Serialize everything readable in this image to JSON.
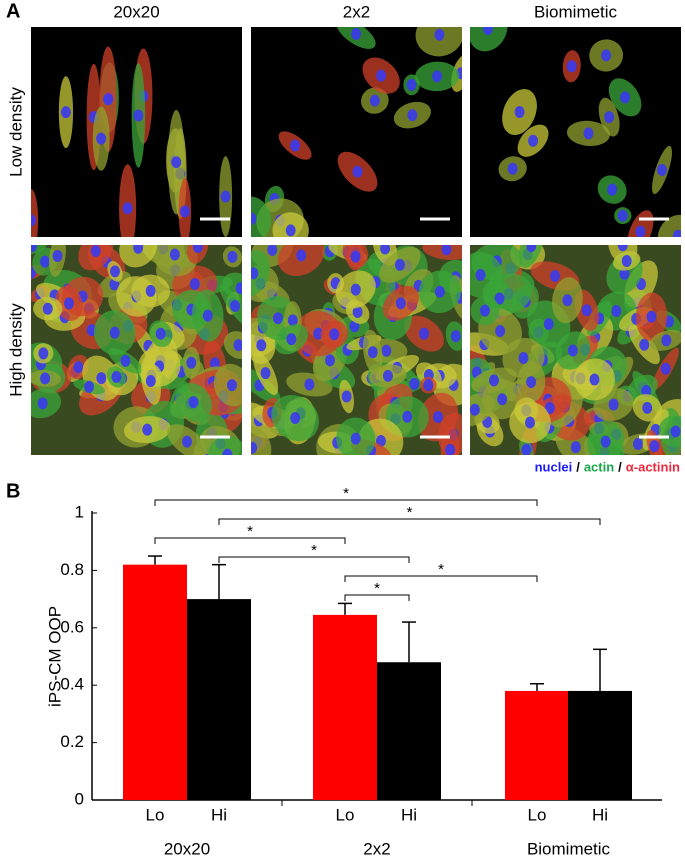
{
  "panel_a": {
    "label": "A",
    "columns": [
      "20x20",
      "2x2",
      "Biomimetic"
    ],
    "rows": [
      "Low density",
      "High density"
    ],
    "legend": [
      {
        "text": "nuclei",
        "color": "#1a1aff"
      },
      {
        "text": "actin",
        "color": "#1aa84a"
      },
      {
        "text": "α-actinin",
        "color": "#e8283c"
      }
    ],
    "legend_separator": "/"
  },
  "chart_data": {
    "type": "bar",
    "panel_label": "B",
    "ylabel": "iPS-CM OOP",
    "groups": [
      "20x20",
      "2x2",
      "Biomimetic"
    ],
    "categories": [
      "Lo",
      "Hi",
      "Lo",
      "Hi",
      "Lo",
      "Hi"
    ],
    "values": [
      0.82,
      0.7,
      0.645,
      0.48,
      0.38,
      0.38
    ],
    "errors": [
      0.03,
      0.12,
      0.04,
      0.14,
      0.025,
      0.145
    ],
    "colors": [
      "#ff0000",
      "#000000",
      "#ff0000",
      "#000000",
      "#ff0000",
      "#000000"
    ],
    "ylim": [
      0,
      1
    ],
    "yticks": [
      0,
      0.2,
      0.4,
      0.6,
      0.8,
      1
    ],
    "significance": [
      {
        "pair": [
          0,
          4
        ],
        "label": "*"
      },
      {
        "pair": [
          1,
          5
        ],
        "label": "*"
      },
      {
        "pair": [
          0,
          2
        ],
        "label": "*"
      },
      {
        "pair": [
          1,
          3
        ],
        "label": "*"
      },
      {
        "pair": [
          2,
          4
        ],
        "label": "*"
      },
      {
        "pair": [
          2,
          3
        ],
        "label": "*"
      }
    ]
  }
}
